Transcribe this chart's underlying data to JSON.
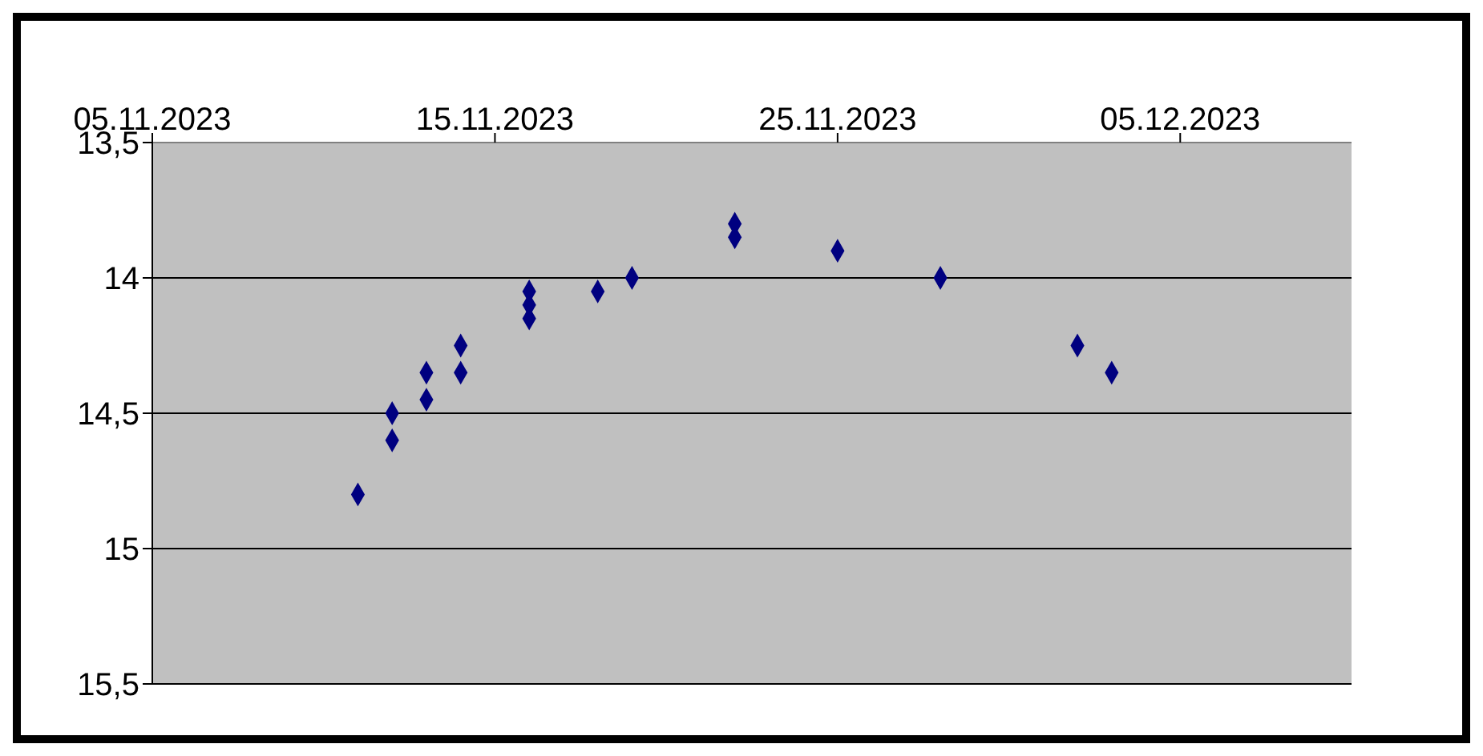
{
  "chart_data": {
    "type": "scatter",
    "marker": "diamond",
    "grid": "y",
    "legend": false,
    "x": [
      "2023-11-11",
      "2023-11-12",
      "2023-11-12",
      "2023-11-13",
      "2023-11-13",
      "2023-11-14",
      "2023-11-14",
      "2023-11-16",
      "2023-11-16",
      "2023-11-16",
      "2023-11-18",
      "2023-11-19",
      "2023-11-22",
      "2023-11-22",
      "2023-11-25",
      "2023-11-28",
      "2023-12-02",
      "2023-12-03"
    ],
    "series": [
      {
        "color": "#000080",
        "values": [
          14.8,
          14.5,
          14.6,
          14.35,
          14.45,
          14.25,
          14.35,
          14.05,
          14.1,
          14.15,
          14.05,
          14.0,
          13.8,
          13.85,
          13.9,
          14.0,
          14.25,
          14.35
        ]
      }
    ],
    "xlim": [
      "2023-11-05",
      "2023-12-10"
    ],
    "xticks": [
      {
        "value": "2023-11-05",
        "label": "05.11.2023"
      },
      {
        "value": "2023-11-15",
        "label": "15.11.2023"
      },
      {
        "value": "2023-11-25",
        "label": "25.11.2023"
      },
      {
        "value": "2023-12-05",
        "label": "05.12.2023"
      }
    ],
    "ylim": [
      15.5,
      13.5
    ],
    "yticks": [
      {
        "value": 13.5,
        "label": "13,5"
      },
      {
        "value": 14,
        "label": "14"
      },
      {
        "value": 14.5,
        "label": "14,5"
      },
      {
        "value": 15,
        "label": "15"
      },
      {
        "value": 15.5,
        "label": "15,5"
      }
    ]
  }
}
